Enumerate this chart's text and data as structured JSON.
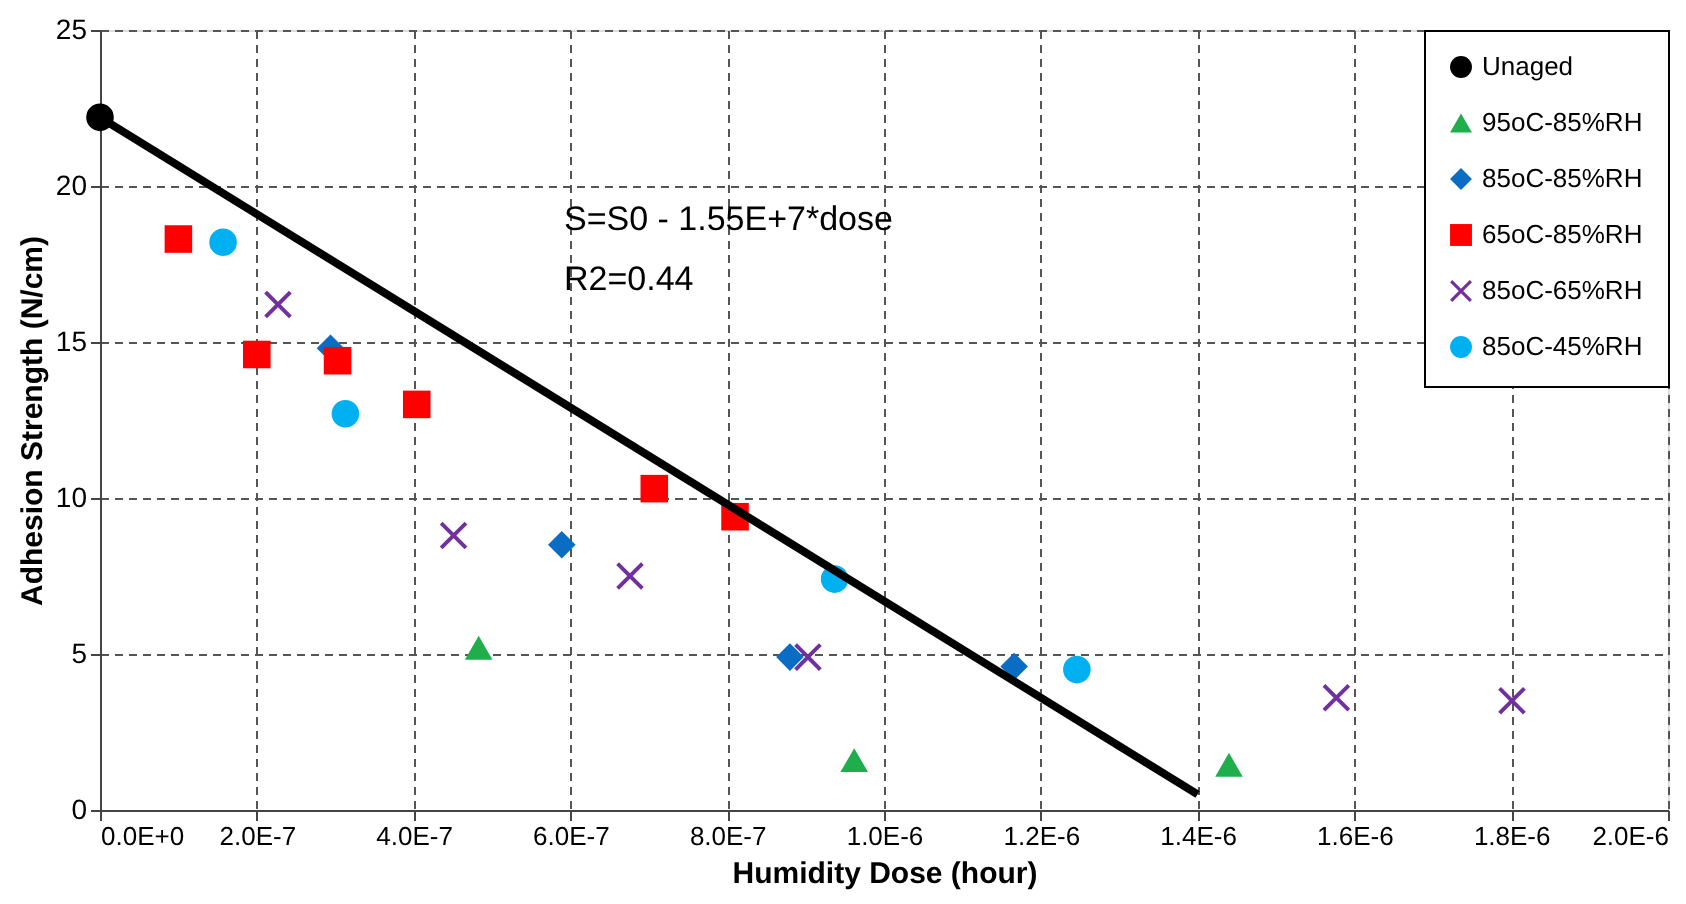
{
  "chart_data": {
    "type": "scatter",
    "xlabel": "Humidity Dose (hour)",
    "ylabel": "Adhesion Strength (N/cm)",
    "xlim": [
      0,
      2e-06
    ],
    "ylim": [
      0,
      25
    ],
    "xticks": [
      {
        "value": 0,
        "label": "0.0E+0"
      },
      {
        "value": 2e-07,
        "label": "2.0E-7"
      },
      {
        "value": 4e-07,
        "label": "4.0E-7"
      },
      {
        "value": 6e-07,
        "label": "6.0E-7"
      },
      {
        "value": 8e-07,
        "label": "8.0E-7"
      },
      {
        "value": 1e-06,
        "label": "1.0E-6"
      },
      {
        "value": 1.2e-06,
        "label": "1.2E-6"
      },
      {
        "value": 1.4e-06,
        "label": "1.4E-6"
      },
      {
        "value": 1.6e-06,
        "label": "1.6E-6"
      },
      {
        "value": 1.8e-06,
        "label": "1.8E-6"
      },
      {
        "value": 2e-06,
        "label": "2.0E-6"
      }
    ],
    "yticks": [
      0,
      5,
      10,
      15,
      20,
      25
    ],
    "grid": true,
    "legend": "top right",
    "annotations": [
      "S=S0 - 1.55E+7*dose",
      "R2=0.44"
    ],
    "series": [
      {
        "name": "Unaged",
        "color": "#000000",
        "marker": "circle",
        "x": [
          0
        ],
        "values": [
          22.2
        ]
      },
      {
        "name": "95oC-85%RH",
        "color": "#1fae4b",
        "marker": "triangle",
        "x": [
          4.83e-07,
          9.62e-07,
          1.44e-06
        ],
        "values": [
          5.2,
          1.6,
          1.45
        ]
      },
      {
        "name": "85oC-85%RH",
        "color": "#0a6cc2",
        "marker": "diamond",
        "x": [
          2.94e-07,
          5.89e-07,
          8.8e-07,
          1.166e-06
        ],
        "values": [
          14.8,
          8.5,
          4.9,
          4.6
        ]
      },
      {
        "name": "65oC-85%RH",
        "color": "#ff0000",
        "marker": "square",
        "x": [
          1e-07,
          2e-07,
          3.03e-07,
          4.04e-07,
          7.07e-07,
          8.1e-07
        ],
        "values": [
          18.3,
          14.6,
          14.4,
          13.0,
          10.3,
          9.4
        ]
      },
      {
        "name": "85oC-65%RH",
        "color": "#7030a0",
        "marker": "cross",
        "x": [
          2.27e-07,
          4.51e-07,
          6.76e-07,
          9.03e-07,
          1.577e-06,
          1.801e-06
        ],
        "values": [
          16.2,
          8.8,
          7.5,
          4.9,
          3.6,
          3.5
        ]
      },
      {
        "name": "85oC-45%RH",
        "color": "#00b0f0",
        "marker": "circle",
        "x": [
          1.57e-07,
          3.13e-07,
          9.37e-07,
          1.246e-06
        ],
        "values": [
          18.2,
          12.7,
          7.4,
          4.5
        ]
      },
      {
        "type": "line",
        "color": "#000000",
        "x": [
          0,
          1.4e-06
        ],
        "values": [
          22.2,
          0.5
        ]
      }
    ]
  }
}
